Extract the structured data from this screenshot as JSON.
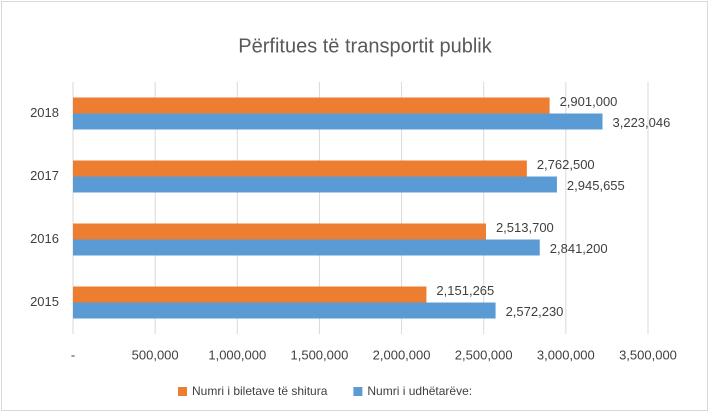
{
  "chart_data": {
    "type": "bar",
    "orientation": "horizontal",
    "title": "Përfitues të transportit publik",
    "categories": [
      "2015",
      "2016",
      "2017",
      "2018"
    ],
    "series": [
      {
        "name": "Numri i biletave të shitura",
        "color": "#ed7d31",
        "values": [
          2151265,
          2513700,
          2762500,
          2901000
        ],
        "value_labels": [
          "2,151,265",
          "2,513,700",
          "2,762,500",
          "2,901,000"
        ]
      },
      {
        "name": "Numri i udhëtarëve:",
        "color": "#5b9bd5",
        "values": [
          2572230,
          2841200,
          2945655,
          3223046
        ],
        "value_labels": [
          "2,572,230",
          "2,841,200",
          "2,945,655",
          "3,223,046"
        ]
      }
    ],
    "xlim": [
      0,
      3500000
    ],
    "xticks": [
      {
        "value": 0,
        "label": "-"
      },
      {
        "value": 500000,
        "label": "500,000"
      },
      {
        "value": 1000000,
        "label": "1,000,000"
      },
      {
        "value": 1500000,
        "label": "1,500,000"
      },
      {
        "value": 2000000,
        "label": "2,000,000"
      },
      {
        "value": 2500000,
        "label": "2,500,000"
      },
      {
        "value": 3000000,
        "label": "3,000,000"
      },
      {
        "value": 3500000,
        "label": "3,500,000"
      }
    ],
    "grid": true,
    "legend": "bottom"
  }
}
